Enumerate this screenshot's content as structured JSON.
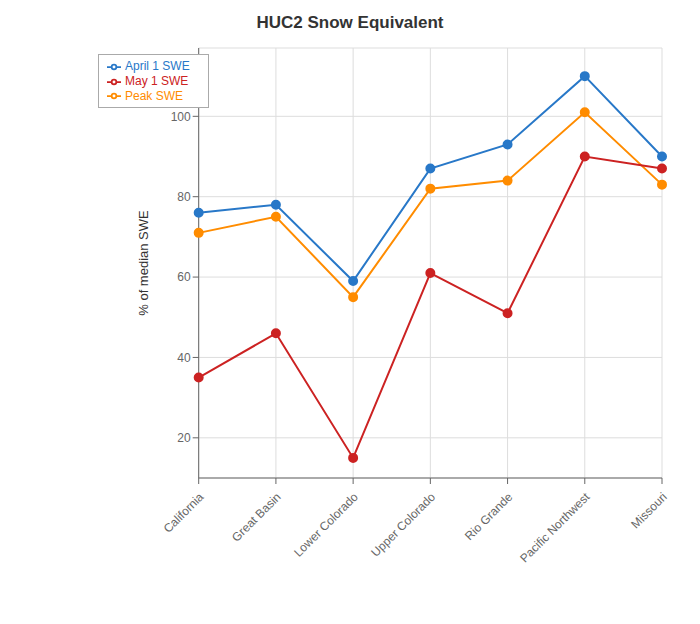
{
  "chart_data": {
    "type": "line",
    "title": "HUC2 Snow Equivalent",
    "ylabel": "% of median SWE",
    "categories": [
      "California",
      "Great Basin",
      "Lower Colorado",
      "Upper Colorado",
      "Rio Grande",
      "Pacific Northwest",
      "Missouri"
    ],
    "series": [
      {
        "name": "Peak SWE",
        "color": "#FF8C00",
        "marker": "o",
        "values": [
          71,
          75,
          55,
          82,
          84,
          101,
          83
        ]
      },
      {
        "name": "April 1 SWE",
        "color": "#2878C8",
        "marker": "o",
        "values": [
          76,
          78,
          59,
          87,
          93,
          110,
          90
        ]
      },
      {
        "name": "May 1 SWE",
        "color": "#CC2222",
        "marker": "o",
        "values": [
          35,
          46,
          15,
          61,
          51,
          90,
          87
        ]
      }
    ],
    "ylim": [
      10,
      117
    ],
    "yticks": [
      20,
      40,
      60,
      80,
      100
    ],
    "grid": true,
    "legend": "upper left"
  }
}
